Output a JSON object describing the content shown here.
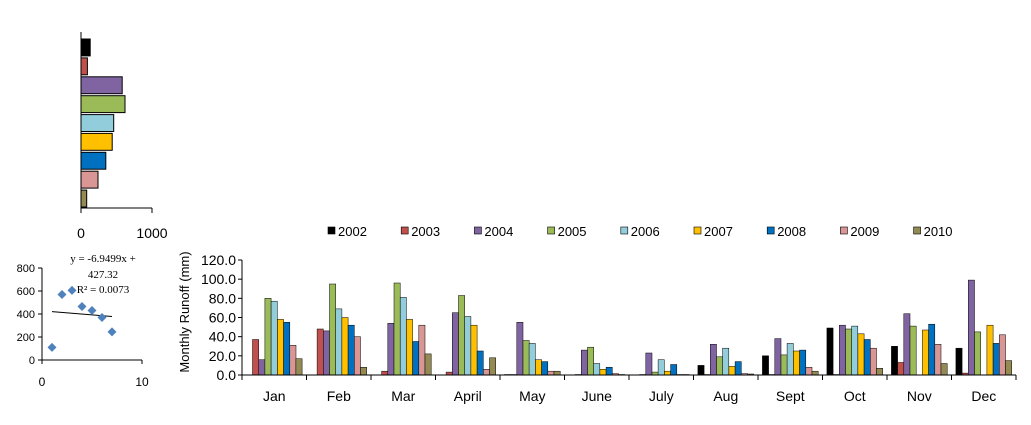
{
  "chart_data": [
    {
      "type": "bar",
      "orientation": "horizontal",
      "categories": [
        "2002",
        "2003",
        "2004",
        "2005",
        "2006",
        "2007",
        "2008",
        "2009",
        "2010"
      ],
      "values": [
        130,
        90,
        580,
        620,
        460,
        440,
        350,
        240,
        80
      ],
      "colors": [
        "#000000",
        "#c0504d",
        "#8064a2",
        "#9bbb59",
        "#92cddc",
        "#ffc000",
        "#0070c0",
        "#d99694",
        "#948a54"
      ],
      "xlim": [
        0,
        1000
      ],
      "x_ticks": [
        "0",
        "1000"
      ],
      "grid": false,
      "legend": "none"
    },
    {
      "type": "scatter",
      "x": [
        1,
        2,
        3,
        4,
        5,
        6,
        7
      ],
      "y": [
        110,
        570,
        605,
        465,
        430,
        370,
        245
      ],
      "xlim": [
        0,
        10
      ],
      "ylim": [
        0,
        800
      ],
      "x_ticks": [
        "0",
        "10"
      ],
      "y_ticks": [
        "0",
        "200",
        "400",
        "600",
        "800"
      ],
      "trendline": {
        "slope": -6.9499,
        "intercept": 427.32,
        "x_range": [
          1,
          7
        ]
      },
      "annotation_lines": [
        "y = -6.9499x +",
        "427.32",
        "R² = 0.0073"
      ],
      "marker_color": "#4f81bd",
      "grid": false
    },
    {
      "type": "bar",
      "categories": [
        "Jan",
        "Feb",
        "Mar",
        "April",
        "May",
        "June",
        "July",
        "Aug",
        "Sept",
        "Oct",
        "Nov",
        "Dec"
      ],
      "ylabel": "Monthly  Runoff (mm)",
      "ylim": [
        0,
        120
      ],
      "y_ticks": [
        "0.0",
        "20.0",
        "40.0",
        "60.0",
        "80.0",
        "100.0",
        "120.0"
      ],
      "grid": false,
      "legend": "top",
      "series": [
        {
          "name": "2002",
          "color": "#000000",
          "values": [
            0,
            0,
            0,
            0,
            0.5,
            0,
            0,
            10,
            20,
            49,
            30,
            28
          ]
        },
        {
          "name": "2003",
          "color": "#c0504d",
          "values": [
            37,
            48,
            4,
            3,
            0.5,
            0.5,
            0.5,
            0.5,
            0.5,
            0.5,
            13,
            2
          ]
        },
        {
          "name": "2004",
          "color": "#8064a2",
          "values": [
            16,
            46,
            54,
            65,
            55,
            26,
            23,
            32,
            38,
            52,
            64,
            99
          ]
        },
        {
          "name": "2005",
          "color": "#9bbb59",
          "values": [
            80,
            95,
            96,
            83,
            36,
            29,
            3,
            19,
            21,
            48,
            51,
            45
          ]
        },
        {
          "name": "2006",
          "color": "#92cddc",
          "values": [
            77,
            69,
            81,
            61,
            33,
            12,
            16,
            28,
            33,
            51,
            0,
            0
          ]
        },
        {
          "name": "2007",
          "color": "#ffc000",
          "values": [
            58,
            60,
            58,
            52,
            16,
            6,
            4,
            9,
            25,
            43,
            47,
            52
          ]
        },
        {
          "name": "2008",
          "color": "#0070c0",
          "values": [
            55,
            52,
            35,
            25,
            14,
            8,
            11,
            14,
            26,
            37,
            53,
            33
          ]
        },
        {
          "name": "2009",
          "color": "#d99694",
          "values": [
            31,
            40,
            52,
            6,
            4,
            1.5,
            0.5,
            1.5,
            8,
            28,
            32,
            42
          ]
        },
        {
          "name": "2010",
          "color": "#948a54",
          "values": [
            17,
            8,
            22,
            18,
            4,
            0.5,
            0.5,
            1,
            4,
            7,
            12,
            15
          ]
        }
      ]
    }
  ]
}
